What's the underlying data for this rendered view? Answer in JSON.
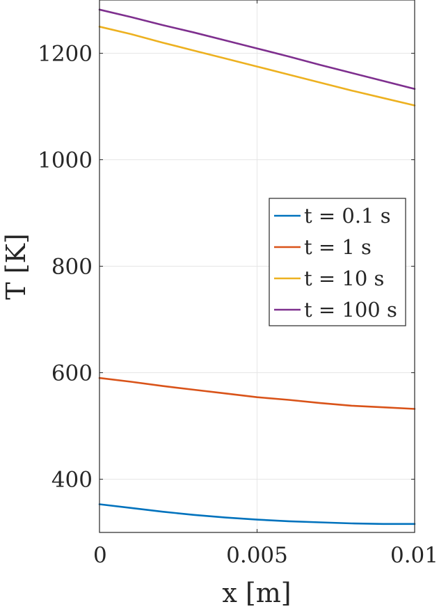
{
  "chart_data": {
    "type": "line",
    "xlabel": "x [m]",
    "ylabel": "T [K]",
    "xlim": [
      0,
      0.01
    ],
    "ylim": [
      300,
      1300
    ],
    "xticks": [
      0,
      0.005,
      0.01
    ],
    "xtick_labels": [
      "0",
      "0.005",
      "0.01"
    ],
    "yticks": [
      400,
      600,
      800,
      1000,
      1200
    ],
    "ytick_labels": [
      "400",
      "600",
      "800",
      "1000",
      "1200"
    ],
    "grid": true,
    "legend_position": "center-right",
    "x": [
      0,
      0.001,
      0.002,
      0.003,
      0.004,
      0.005,
      0.006,
      0.007,
      0.008,
      0.009,
      0.01
    ],
    "series": [
      {
        "name": "t = 0.1 s",
        "color": "#0072BD",
        "values": [
          353,
          346,
          339,
          333,
          328,
          324,
          321,
          319,
          317,
          316,
          316
        ]
      },
      {
        "name": "t = 1 s",
        "color": "#D95319",
        "values": [
          590,
          583,
          575,
          568,
          561,
          554,
          549,
          543,
          538,
          535,
          532
        ]
      },
      {
        "name": "t = 10 s",
        "color": "#EDB120",
        "values": [
          1250,
          1236,
          1220,
          1205,
          1190,
          1175,
          1160,
          1145,
          1130,
          1116,
          1102
        ]
      },
      {
        "name": "t = 100 s",
        "color": "#7E2F8E",
        "values": [
          1282,
          1268,
          1253,
          1239,
          1224,
          1209,
          1194,
          1178,
          1163,
          1148,
          1133
        ]
      }
    ]
  }
}
